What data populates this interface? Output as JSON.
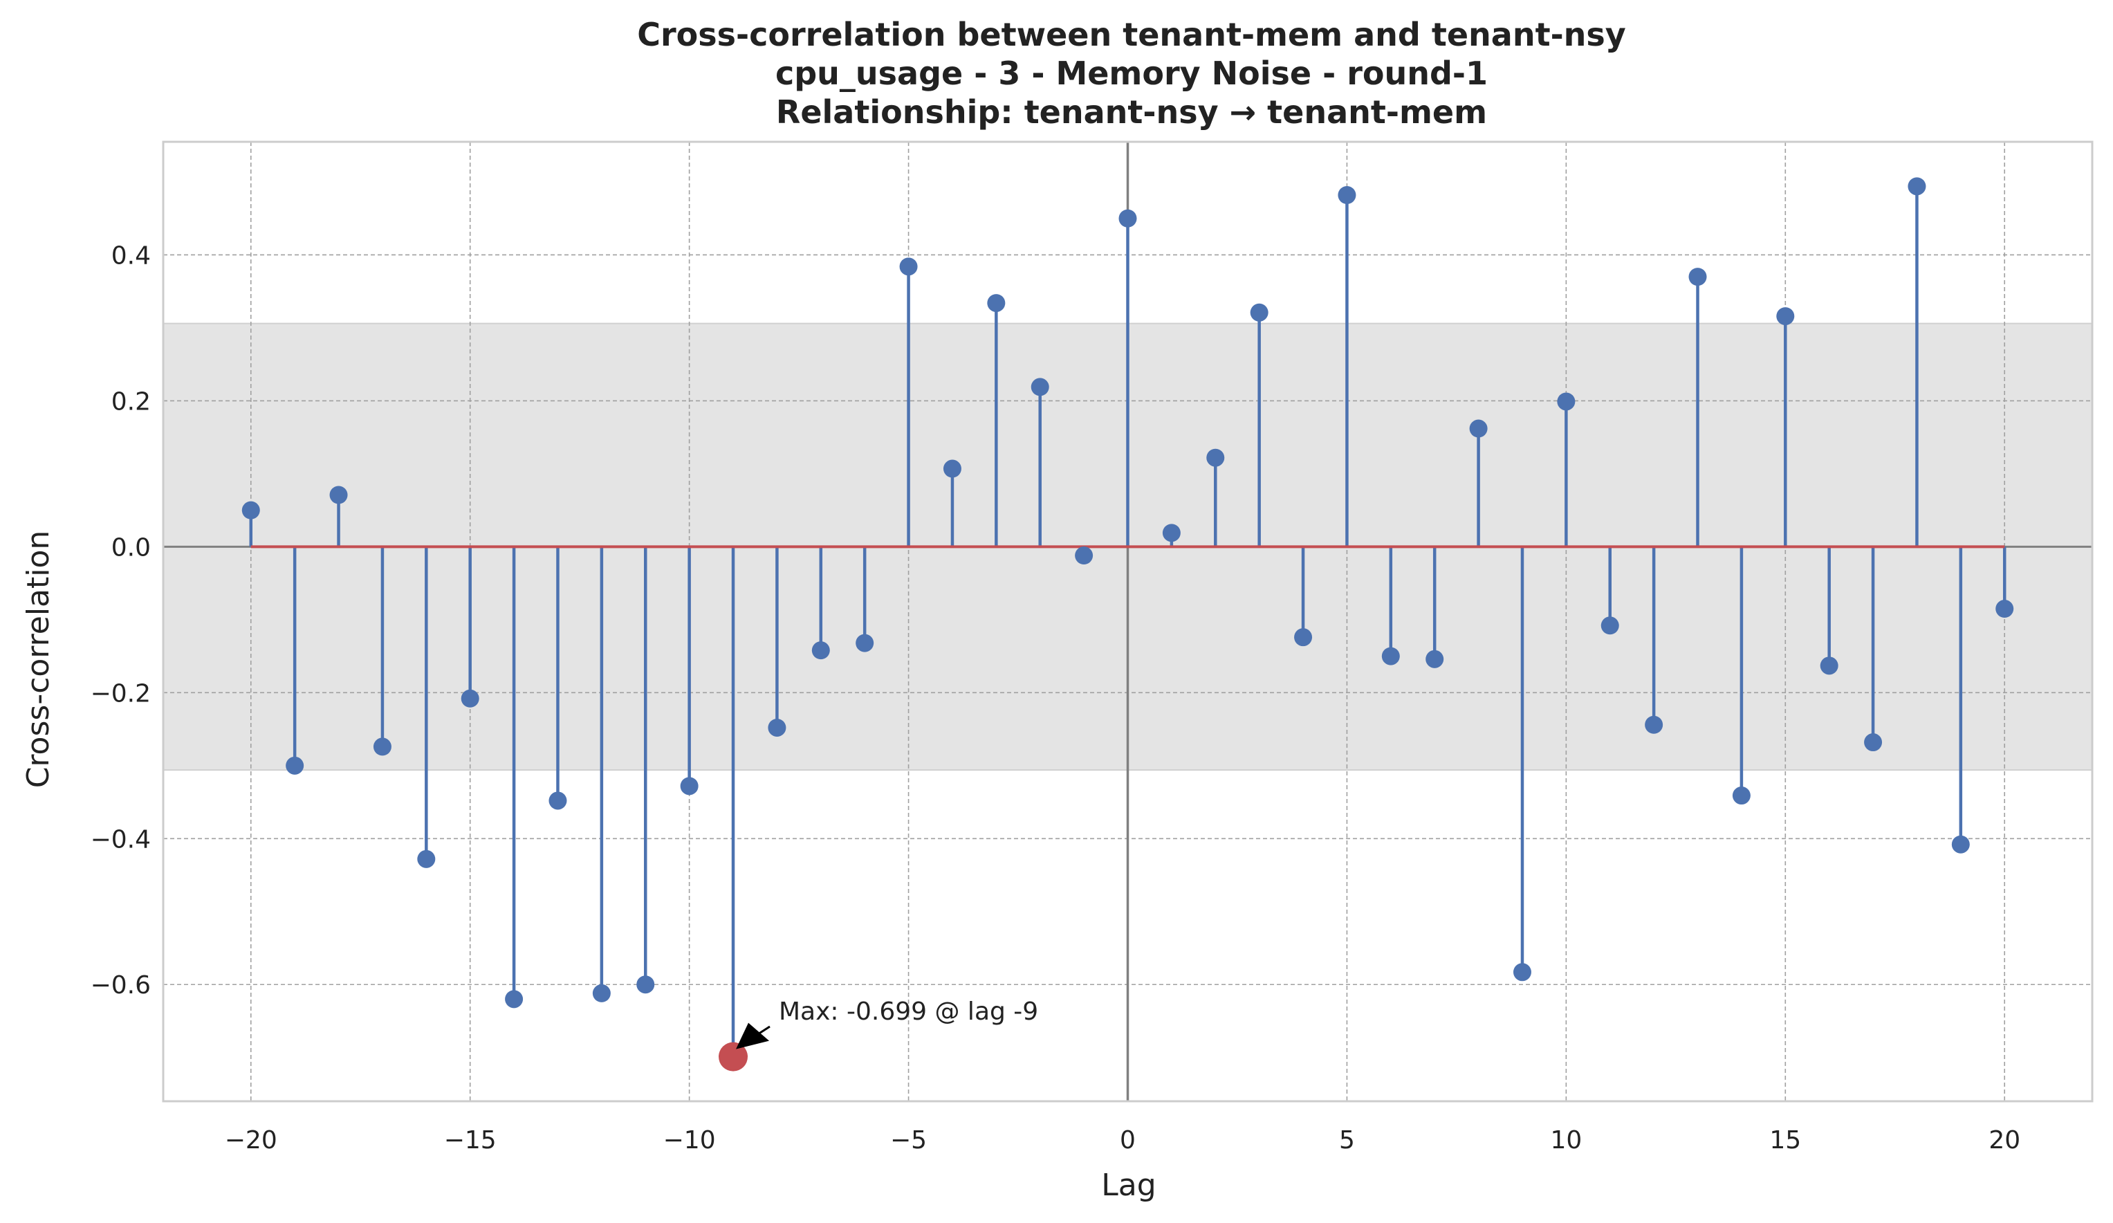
{
  "chart_data": {
    "type": "stem",
    "title_lines": [
      "Cross-correlation between tenant-mem and tenant-nsy",
      "cpu_usage - 3 - Memory Noise - round-1",
      "Relationship: tenant-nsy → tenant-mem"
    ],
    "xlabel": "Lag",
    "ylabel": "Cross-correlation",
    "xlim": [
      -22,
      22
    ],
    "ylim": [
      -0.76,
      0.555
    ],
    "xticks": [
      -20,
      -15,
      -10,
      -5,
      0,
      5,
      10,
      15,
      20
    ],
    "xtick_labels": [
      "−20",
      "−15",
      "−10",
      "−5",
      "0",
      "5",
      "10",
      "15",
      "20"
    ],
    "yticks": [
      -0.6,
      -0.4,
      -0.2,
      0.0,
      0.2,
      0.4
    ],
    "ytick_labels": [
      "−0.6",
      "−0.4",
      "−0.2",
      "0.0",
      "0.2",
      "0.4"
    ],
    "grid": true,
    "confidence_band": [
      -0.306,
      0.306
    ],
    "lags": [
      -20,
      -19,
      -18,
      -17,
      -16,
      -15,
      -14,
      -13,
      -12,
      -11,
      -10,
      -9,
      -8,
      -7,
      -6,
      -5,
      -4,
      -3,
      -2,
      -1,
      0,
      1,
      2,
      3,
      4,
      5,
      6,
      7,
      8,
      9,
      10,
      11,
      12,
      13,
      14,
      15,
      16,
      17,
      18,
      19,
      20
    ],
    "values": [
      0.05,
      -0.3,
      0.071,
      -0.274,
      -0.428,
      -0.208,
      -0.62,
      -0.348,
      -0.612,
      -0.6,
      -0.328,
      -0.699,
      -0.248,
      -0.142,
      -0.132,
      0.384,
      0.107,
      0.334,
      0.219,
      -0.012,
      0.45,
      0.019,
      0.122,
      0.321,
      -0.124,
      0.482,
      -0.15,
      -0.154,
      0.162,
      -0.583,
      0.199,
      -0.108,
      -0.244,
      0.37,
      -0.341,
      0.316,
      -0.163,
      -0.268,
      0.494,
      -0.408,
      -0.085
    ],
    "max_point": {
      "lag": -9,
      "value": -0.699
    },
    "annotation": "Max: -0.699 @ lag -9",
    "colors": {
      "stem": "#4c72b0",
      "baseline": "#c44e52",
      "highlight": "#c44e52",
      "band": "#e4e4e4",
      "zero_vline": "#808080",
      "frame": "#cccccc"
    }
  }
}
